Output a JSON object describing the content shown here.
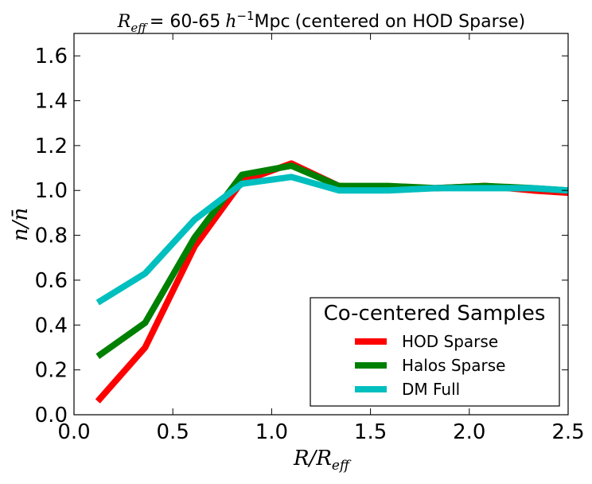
{
  "chart_data": {
    "type": "line",
    "title": "R_eff = 60-65 h^-1 Mpc (centered on HOD Sparse)",
    "title_parts": {
      "symbol": "R",
      "symbol_sub": "eff",
      "range": "= 60-65",
      "unit_h": "h",
      "unit_exp": "−1",
      "unit": "Mpc",
      "suffix": "(centered on HOD Sparse)"
    },
    "xlabel": "R/R_eff",
    "xlabel_parts": {
      "main": "R/R",
      "sub": "eff"
    },
    "ylabel": "n/n̄",
    "xlim": [
      0.0,
      2.5
    ],
    "ylim": [
      0.0,
      1.7
    ],
    "xticks": [
      0.0,
      0.5,
      1.0,
      1.5,
      2.0,
      2.5
    ],
    "xtick_labels": [
      "0.0",
      "0.5",
      "1.0",
      "1.5",
      "2.0",
      "2.5"
    ],
    "yticks": [
      0.0,
      0.2,
      0.4,
      0.6,
      0.8,
      1.0,
      1.2,
      1.4,
      1.6
    ],
    "ytick_labels": [
      "0.0",
      "0.2",
      "0.4",
      "0.6",
      "0.8",
      "1.0",
      "1.2",
      "1.4",
      "1.6"
    ],
    "grid": false,
    "x": [
      0.12,
      0.36,
      0.61,
      0.85,
      1.1,
      1.34,
      1.59,
      1.83,
      2.08,
      2.32,
      2.5
    ],
    "series": [
      {
        "name": "HOD Sparse",
        "color": "#ff0000",
        "values": [
          0.06,
          0.3,
          0.75,
          1.04,
          1.12,
          1.02,
          1.01,
          1.01,
          1.02,
          1.0,
          0.99
        ]
      },
      {
        "name": "Halos Sparse",
        "color": "#008000",
        "values": [
          0.26,
          0.41,
          0.79,
          1.07,
          1.11,
          1.02,
          1.02,
          1.01,
          1.02,
          1.01,
          1.0
        ]
      },
      {
        "name": "DM Full",
        "color": "#00bfbf",
        "values": [
          0.5,
          0.63,
          0.87,
          1.03,
          1.06,
          1.0,
          1.0,
          1.01,
          1.01,
          1.01,
          1.0
        ]
      }
    ],
    "legend": {
      "title": "Co-centered Samples",
      "placement": "bottom-right",
      "entries": [
        "HOD Sparse",
        "Halos Sparse",
        "DM Full"
      ]
    }
  }
}
